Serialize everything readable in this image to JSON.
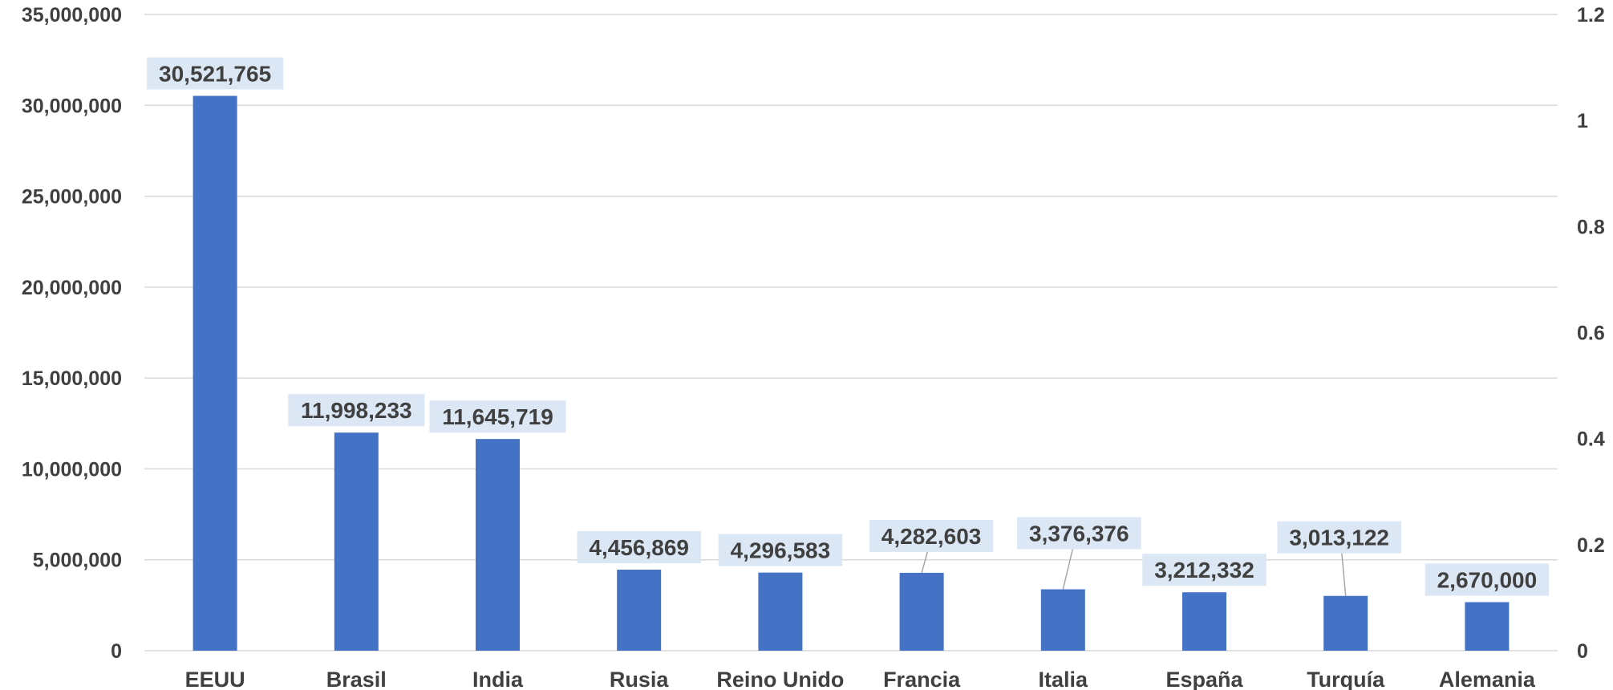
{
  "chart_data": {
    "type": "bar",
    "categories": [
      "EEUU",
      "Brasil",
      "India",
      "Rusia",
      "Reino Unido",
      "Francia",
      "Italia",
      "España",
      "Turquía",
      "Alemania"
    ],
    "values": [
      30521765,
      11998233,
      11645719,
      4456869,
      4296583,
      4282603,
      3376376,
      3212332,
      3013122,
      2670000
    ],
    "data_labels": [
      "30,521,765",
      "11,998,233",
      "11,645,719",
      "4,456,869",
      "4,296,583",
      "4,282,603",
      "3,376,376",
      "3,212,332",
      "3,013,122",
      "2,670,000"
    ],
    "y_ticks": [
      "0",
      "5,000,000",
      "10,000,000",
      "15,000,000",
      "20,000,000",
      "25,000,000",
      "30,000,000",
      "35,000,000"
    ],
    "y2_ticks": [
      "0",
      "0.2",
      "0.4",
      "0.6",
      "0.8",
      "1",
      "1.2"
    ],
    "ylim": [
      0,
      35000000
    ],
    "y2lim": [
      0,
      1.2
    ],
    "grid": true,
    "legend": "none",
    "title": "",
    "xlabel": "",
    "ylabel": "",
    "colors": {
      "bar": "#4472c4",
      "label_bg": "#dbe7f4",
      "text": "#404040",
      "grid": "#d9d9d9"
    }
  }
}
